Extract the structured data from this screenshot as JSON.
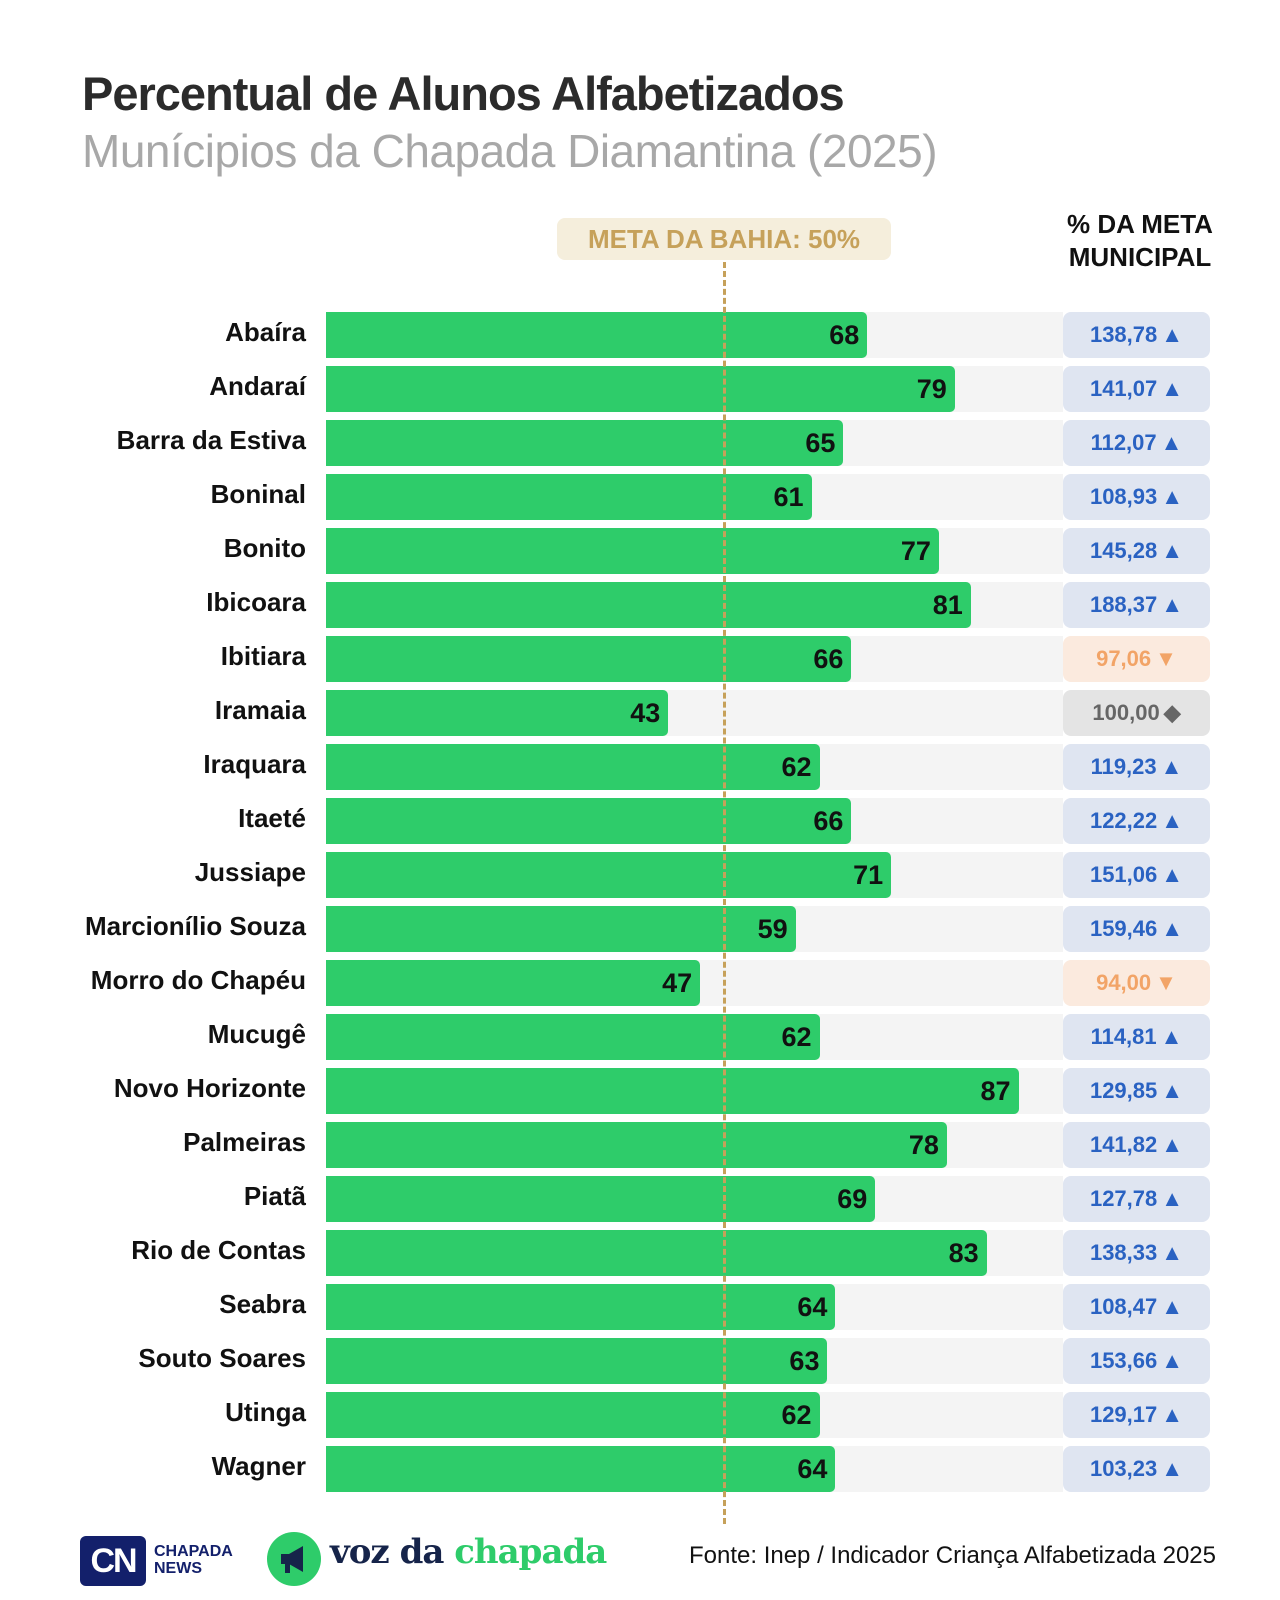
{
  "chart_data": {
    "type": "bar",
    "title": "Percentual de Alunos Alfabetizados",
    "subtitle": "Munícipios da Chapada Diamantina (2025)",
    "reference_line": {
      "label": "META DA BAHIA: 50%",
      "value": 50
    },
    "secondary_column_header": "% DA META MUNICIPAL",
    "xlim": [
      0,
      100
    ],
    "categories": [
      "Abaíra",
      "Andaraí",
      "Barra da Estiva",
      "Boninal",
      "Bonito",
      "Ibicoara",
      "Ibitiara",
      "Iramaia",
      "Iraquara",
      "Itaeté",
      "Jussiape",
      "Marcionílio Souza",
      "Morro do Chapéu",
      "Mucugê",
      "Novo Horizonte",
      "Palmeiras",
      "Piatã",
      "Rio de Contas",
      "Seabra",
      "Souto Soares",
      "Utinga",
      "Wagner"
    ],
    "values": [
      68,
      79,
      65,
      61,
      77,
      81,
      66,
      43,
      62,
      66,
      71,
      59,
      47,
      62,
      87,
      78,
      69,
      83,
      64,
      63,
      62,
      64
    ],
    "meta_municipal": [
      "138,78",
      "141,07",
      "112,07",
      "108,93",
      "145,28",
      "188,37",
      "97,06",
      "100,00",
      "119,23",
      "122,22",
      "151,06",
      "159,46",
      "94,00",
      "114,81",
      "129,85",
      "141,82",
      "127,78",
      "138,33",
      "108,47",
      "153,66",
      "129,17",
      "103,23"
    ],
    "meta_trend": [
      "up",
      "up",
      "up",
      "up",
      "up",
      "up",
      "down",
      "flat",
      "up",
      "up",
      "up",
      "up",
      "down",
      "up",
      "up",
      "up",
      "up",
      "up",
      "up",
      "up",
      "up",
      "up"
    ]
  },
  "colors": {
    "bar": "#2ecc6a",
    "track": "#f4f4f4",
    "meta": "#c6a15a",
    "up": "#2a62c2",
    "down": "#f2a467",
    "flat": "#666666"
  },
  "icons": {
    "up": "▲",
    "down": "▼",
    "flat": "◆"
  },
  "header": {
    "col_line1": "% DA META",
    "col_line2": "MUNICIPAL"
  },
  "footer": {
    "source": "Fonte: Inep / Indicador Criança Alfabetizada 2025",
    "logo1_mark": "CN",
    "logo1_line1": "CHAPADA",
    "logo1_line2": "NEWS",
    "logo2_a": "voz da ",
    "logo2_b": "chapada"
  }
}
